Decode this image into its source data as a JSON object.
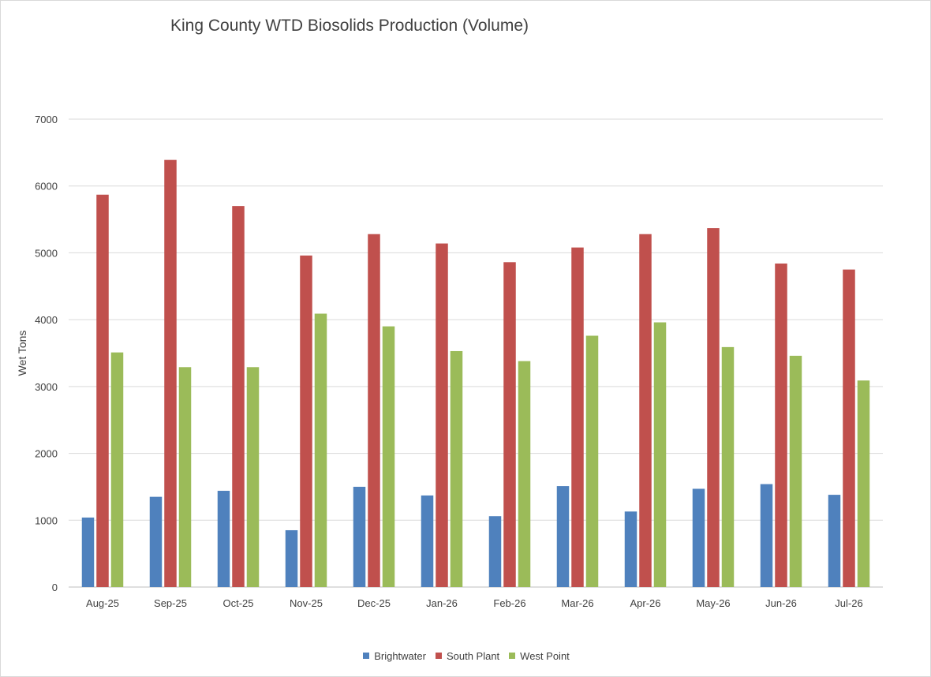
{
  "chart_data": {
    "type": "bar",
    "title": "King County WTD Biosolids Production (Volume)",
    "xlabel": "",
    "ylabel": "Wet Tons",
    "ylim": [
      0,
      7000
    ],
    "yticks": [
      0,
      1000,
      2000,
      3000,
      4000,
      5000,
      6000,
      7000
    ],
    "grid": true,
    "legend_position": "bottom",
    "categories": [
      "Aug-25",
      "Sep-25",
      "Oct-25",
      "Nov-25",
      "Dec-25",
      "Jan-26",
      "Feb-26",
      "Mar-26",
      "Apr-26",
      "May-26",
      "Jun-26",
      "Jul-26"
    ],
    "series": [
      {
        "name": "Brightwater",
        "color": "#4f81bd",
        "values": [
          1040,
          1350,
          1440,
          850,
          1500,
          1370,
          1060,
          1510,
          1130,
          1470,
          1540,
          1380
        ]
      },
      {
        "name": "South Plant",
        "color": "#c0504d",
        "values": [
          5870,
          6390,
          5700,
          4960,
          5280,
          5140,
          4860,
          5080,
          5280,
          5370,
          4840,
          4750
        ]
      },
      {
        "name": "West Point",
        "color": "#9bbb59",
        "values": [
          3510,
          3290,
          3290,
          4090,
          3900,
          3530,
          3380,
          3760,
          3960,
          3590,
          3460,
          3090
        ]
      }
    ]
  }
}
